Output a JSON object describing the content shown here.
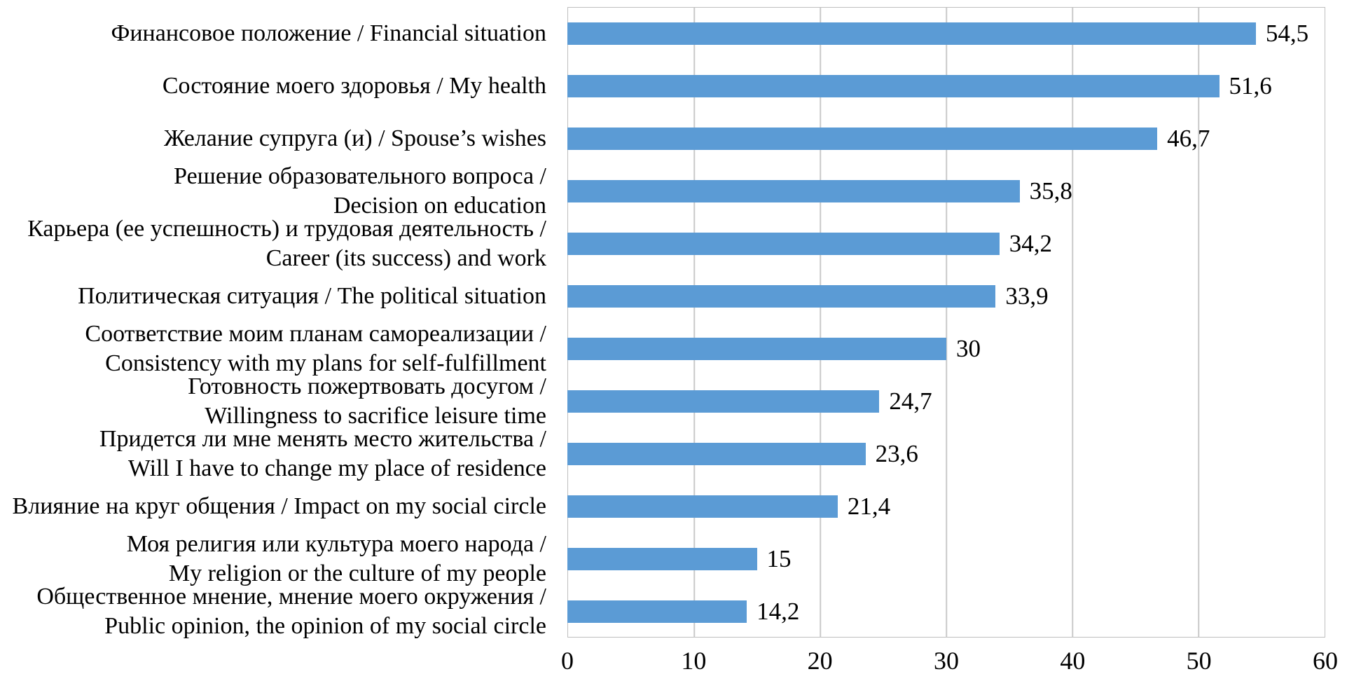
{
  "chart_data": {
    "type": "bar",
    "orientation": "horizontal",
    "categories": [
      [
        "Финансовое положение / Financial situation"
      ],
      [
        "Состояние моего здоровья / My health"
      ],
      [
        "Желание супруга (и) / Spouse’s wishes"
      ],
      [
        "Решение образовательного вопроса /",
        "Decision on education"
      ],
      [
        "Карьера (ее успешность) и трудовая деятельность /",
        "Career (its success) and work"
      ],
      [
        "Политическая ситуация / The political situation"
      ],
      [
        "Соответствие моим планам самореализации /",
        "Consistency with my plans for self-fulfillment"
      ],
      [
        "Готовность пожертвовать досугом /",
        "Willingness to sacrifice leisure time"
      ],
      [
        "Придется ли мне менять место жительства /",
        "Will I have to change my place of residence"
      ],
      [
        "Влияние на круг общения / Impact on my social circle"
      ],
      [
        "Моя религия или культура моего народа /",
        "My religion or the culture of my people"
      ],
      [
        "Общественное мнение, мнение моего окружения /",
        "Public opinion, the opinion of my social circle"
      ]
    ],
    "values": [
      54.5,
      51.6,
      46.7,
      35.8,
      34.2,
      33.9,
      30,
      24.7,
      23.6,
      21.4,
      15,
      14.2
    ],
    "value_labels": [
      "54,5",
      "51,6",
      "46,7",
      "35,8",
      "34,2",
      "33,9",
      "30",
      "24,7",
      "23,6",
      "21,4",
      "15",
      "14,2"
    ],
    "xlim": [
      0,
      60
    ],
    "xticks": [
      0,
      10,
      20,
      30,
      40,
      50,
      60
    ],
    "xtick_labels": [
      "0",
      "10",
      "20",
      "30",
      "40",
      "50",
      "60"
    ],
    "grid": true,
    "legend": false,
    "bar_color": "#5b9bd5",
    "gridline_color": "#c9c9c9",
    "plot_border_color": "#bfbfbf",
    "text_color": "#000000"
  }
}
